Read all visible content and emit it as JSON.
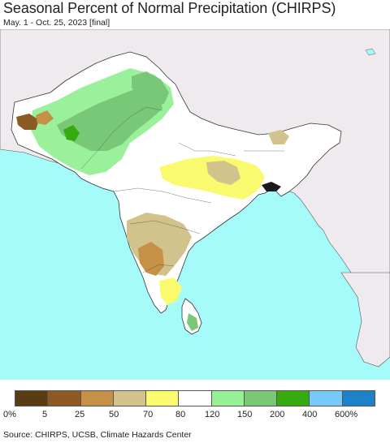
{
  "header": {
    "title": "Seasonal Percent of Normal Precipitation (CHIRPS)",
    "subtitle": "May. 1 - Oct. 25, 2023 [final]"
  },
  "legend": {
    "colors": [
      "#5a3c14",
      "#8c5a23",
      "#c49146",
      "#d2c28c",
      "#fafa6e",
      "#ffffff",
      "#96f096",
      "#78c878",
      "#37aa0f",
      "#78c8fa",
      "#1e82c8"
    ],
    "labels": [
      "0%",
      "5",
      "25",
      "50",
      "70",
      "80",
      "120",
      "150",
      "200",
      "400",
      "600%"
    ]
  },
  "map": {
    "ocean_color": "#a5fafa",
    "outside_land_color": "#eeeaee",
    "region_land_color": "#ffffff"
  },
  "footer": {
    "source": "Source: CHIRPS, UCSB, Climate Hazards Center"
  }
}
